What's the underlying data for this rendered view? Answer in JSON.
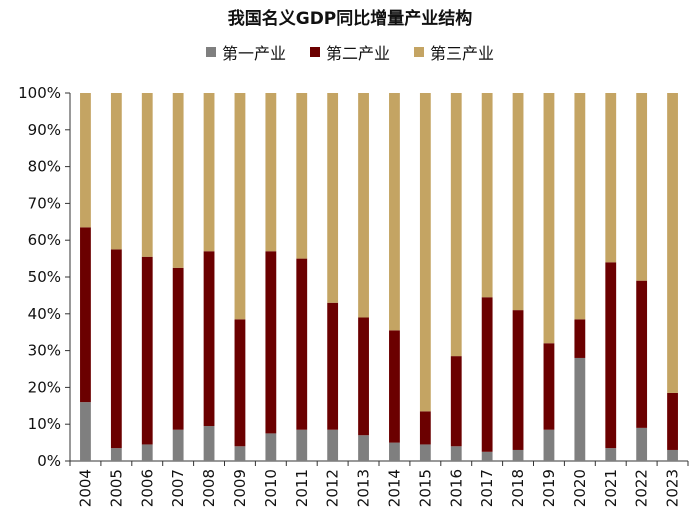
{
  "title": "我国名义GDP同比增量产业结构",
  "chart_data": {
    "type": "bar",
    "stacked": true,
    "categories": [
      "2004",
      "2005",
      "2006",
      "2007",
      "2008",
      "2009",
      "2010",
      "2011",
      "2012",
      "2013",
      "2014",
      "2015",
      "2016",
      "2017",
      "2018",
      "2019",
      "2020",
      "2021",
      "2022",
      "2023"
    ],
    "series": [
      {
        "name": "第一产业",
        "color": "#7f7f7f",
        "values": [
          16,
          3.5,
          4.5,
          8.5,
          9.5,
          4,
          7.5,
          8.5,
          8.5,
          7,
          5,
          4.5,
          4,
          2.5,
          3,
          8.5,
          28,
          3.5,
          9,
          3
        ]
      },
      {
        "name": "第二产业",
        "color": "#6b0000",
        "values": [
          47.5,
          54,
          51,
          44,
          47.5,
          34.5,
          49.5,
          46.5,
          34.5,
          32,
          30.5,
          9,
          24.5,
          42,
          38,
          23.5,
          10.5,
          50.5,
          40,
          15.5
        ]
      },
      {
        "name": "第三产业",
        "color": "#c4a463",
        "values": [
          36.5,
          42.5,
          44.5,
          47.5,
          43,
          61.5,
          43,
          45,
          57,
          61,
          64.5,
          86.5,
          71.5,
          55.5,
          59,
          68,
          61.5,
          46,
          51,
          81.5
        ]
      }
    ],
    "y_ticks": [
      "0%",
      "10%",
      "20%",
      "30%",
      "40%",
      "50%",
      "60%",
      "70%",
      "80%",
      "90%",
      "100%"
    ],
    "ylim": [
      0,
      100
    ],
    "legend_position": "top",
    "grid": false
  }
}
